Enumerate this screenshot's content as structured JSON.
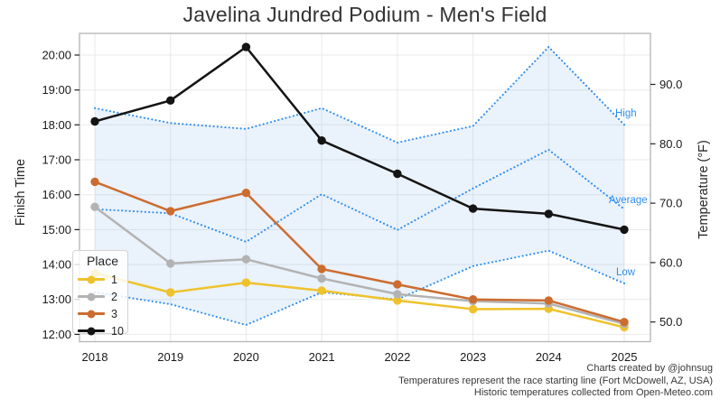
{
  "chart_data": {
    "type": "line",
    "title": "Javelina Jundred Podium - Men's Field",
    "x_categories": [
      "2018",
      "2019",
      "2020",
      "2021",
      "2022",
      "2023",
      "2024",
      "2025"
    ],
    "left_axis": {
      "label": "Finish Time",
      "ticks": [
        "12:00",
        "13:00",
        "14:00",
        "15:00",
        "16:00",
        "17:00",
        "18:00",
        "19:00",
        "20:00"
      ],
      "tick_values": [
        12,
        13,
        14,
        15,
        16,
        17,
        18,
        19,
        20
      ],
      "range_hours": [
        11.8,
        20.6
      ]
    },
    "right_axis": {
      "label": "Temperature (°F)",
      "ticks": [
        "50.0",
        "60.0",
        "70.0",
        "80.0",
        "90.0"
      ],
      "tick_values": [
        50,
        60,
        70,
        80,
        90
      ],
      "range_f": [
        46.8,
        98.6
      ]
    },
    "finish_series": [
      {
        "name": "1",
        "color": "#EFC22B",
        "values_hours": [
          13.75,
          13.2,
          13.48,
          13.25,
          12.97,
          12.72,
          12.73,
          12.2
        ]
      },
      {
        "name": "2",
        "color": "#B3B3B3",
        "values_hours": [
          15.65,
          14.03,
          14.15,
          13.6,
          13.15,
          12.95,
          12.88,
          12.3
        ]
      },
      {
        "name": "3",
        "color": "#CC6C30",
        "values_hours": [
          16.37,
          15.53,
          16.05,
          13.87,
          13.43,
          13.0,
          12.97,
          12.35
        ]
      },
      {
        "name": "10",
        "color": "#141414",
        "values_hours": [
          18.1,
          18.7,
          20.23,
          17.55,
          16.6,
          15.6,
          15.45,
          15.0
        ]
      }
    ],
    "temp_series_f": [
      {
        "name": "High",
        "values": [
          86.0,
          83.5,
          82.5,
          86.0,
          80.2,
          83.0,
          96.3,
          83.2
        ]
      },
      {
        "name": "Average",
        "values": [
          69.0,
          68.3,
          63.5,
          71.5,
          65.5,
          72.5,
          79.0,
          69.0
        ]
      },
      {
        "name": "Low",
        "values": [
          55.0,
          53.0,
          49.5,
          55.0,
          53.8,
          59.4,
          62.0,
          56.5
        ]
      }
    ],
    "temp_color": "#2E8FF0",
    "band_fill": "rgba(125,175,230,0.16)",
    "legend": {
      "title": "Place",
      "entries": [
        "1",
        "2",
        "3",
        "10"
      ],
      "position": "bottom-left-inside"
    },
    "grid": true
  },
  "footer": {
    "lines": [
      "Charts created by @johnsug",
      "Temperatures represent the race starting line (Fort McDowell, AZ, USA)",
      "Historic temperatures collected from Open-Meteo.com"
    ]
  }
}
